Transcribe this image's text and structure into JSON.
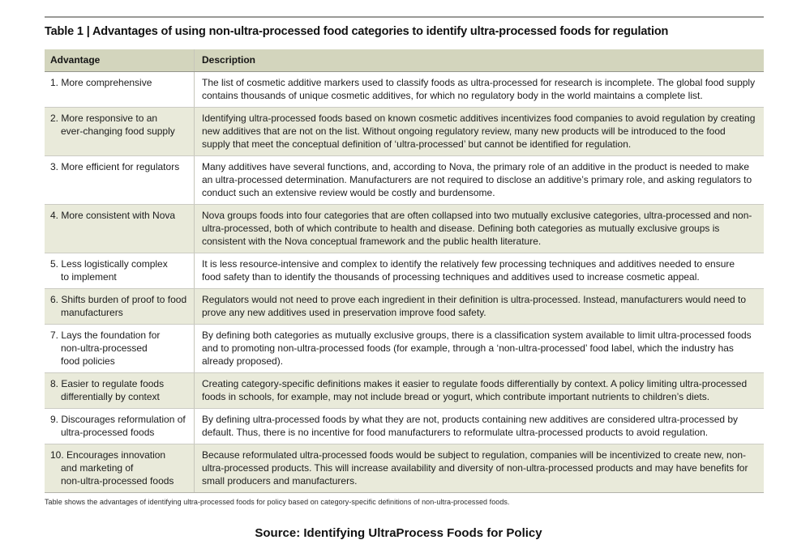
{
  "page": {
    "title": "Table 1 | Advantages of using non-ultra-processed food categories to identify ultra-processed foods for regulation",
    "footnote": "Table shows the advantages of identifying ultra-processed foods for policy based on category-specific definitions of non-ultra-processed foods.",
    "source": "Source: Identifying UltraProcess Foods for Policy"
  },
  "colors": {
    "header_bg": "#d3d5bd",
    "band_bg": "#e9eada",
    "top_rule": "#9a9a97",
    "row_separator": "#cbcbc3"
  },
  "table": {
    "columns": [
      "Advantage",
      "Description"
    ],
    "rows": [
      {
        "advantage": "1. More comprehensive",
        "description": "The list of cosmetic additive markers used to classify foods as ultra-processed for research is incomplete. The global food supply contains thousands of unique cosmetic additives, for which no regulatory body in the world maintains a complete list."
      },
      {
        "advantage": "2. More responsive to an\never-changing food supply",
        "description": "Identifying ultra-processed foods based on known cosmetic additives incentivizes food companies to avoid regulation by creating new additives that are not on the list. Without ongoing regulatory review, many new products will be introduced to the food supply that meet the conceptual definition of ‘ultra-processed’ but cannot be identified for regulation."
      },
      {
        "advantage": "3. More efficient for regulators",
        "description": "Many additives have several functions, and, according to Nova, the primary role of an additive in the product is needed to make an ultra-processed determination. Manufacturers are not required to disclose an additive’s primary role, and asking regulators to conduct such an extensive review would be costly and burdensome."
      },
      {
        "advantage": "4. More consistent with Nova",
        "description": "Nova groups foods into four categories that are often collapsed into two mutually exclusive categories, ultra-processed and non-ultra-processed, both of which contribute to health and disease. Defining both categories as mutually exclusive groups is consistent with the Nova conceptual framework and the public health literature."
      },
      {
        "advantage": "5. Less logistically complex\nto implement",
        "description": "It is less resource-intensive and complex to identify the relatively few processing techniques and additives needed to ensure food safety than to identify the thousands of processing techniques and additives used to increase cosmetic appeal."
      },
      {
        "advantage": "6. Shifts burden of proof to food\nmanufacturers",
        "description": "Regulators would not need to prove each ingredient in their definition is ultra-processed. Instead, manufacturers would need to prove any new additives used in preservation improve food safety."
      },
      {
        "advantage": "7. Lays the foundation for\nnon-ultra-processed\nfood policies",
        "description": "By defining both categories as mutually exclusive groups, there is a classification system available to limit ultra-processed foods and to promoting non-ultra-processed foods (for example, through a ‘non-ultra-processed’ food label, which the industry has already proposed)."
      },
      {
        "advantage": "8. Easier to regulate foods\ndifferentially by context",
        "description": "Creating category-specific definitions makes it easier to regulate foods differentially by context. A policy limiting ultra-processed foods in schools, for example, may not include bread or yogurt, which contribute important nutrients to children’s diets."
      },
      {
        "advantage": "9. Discourages reformulation of\nultra-processed foods",
        "description": "By defining ultra-processed foods by what they are not, products containing new additives are considered ultra-processed by default. Thus, there is no incentive for food manufacturers to reformulate ultra-processed products to avoid regulation."
      },
      {
        "advantage": "10. Encourages innovation\nand marketing of\nnon-ultra-processed foods",
        "description": "Because reformulated ultra-processed foods would be subject to regulation, companies will be incentivized to create new, non-ultra-processed products. This will increase availability and diversity of non-ultra-processed products and may have benefits for small producers and manufacturers."
      }
    ]
  }
}
